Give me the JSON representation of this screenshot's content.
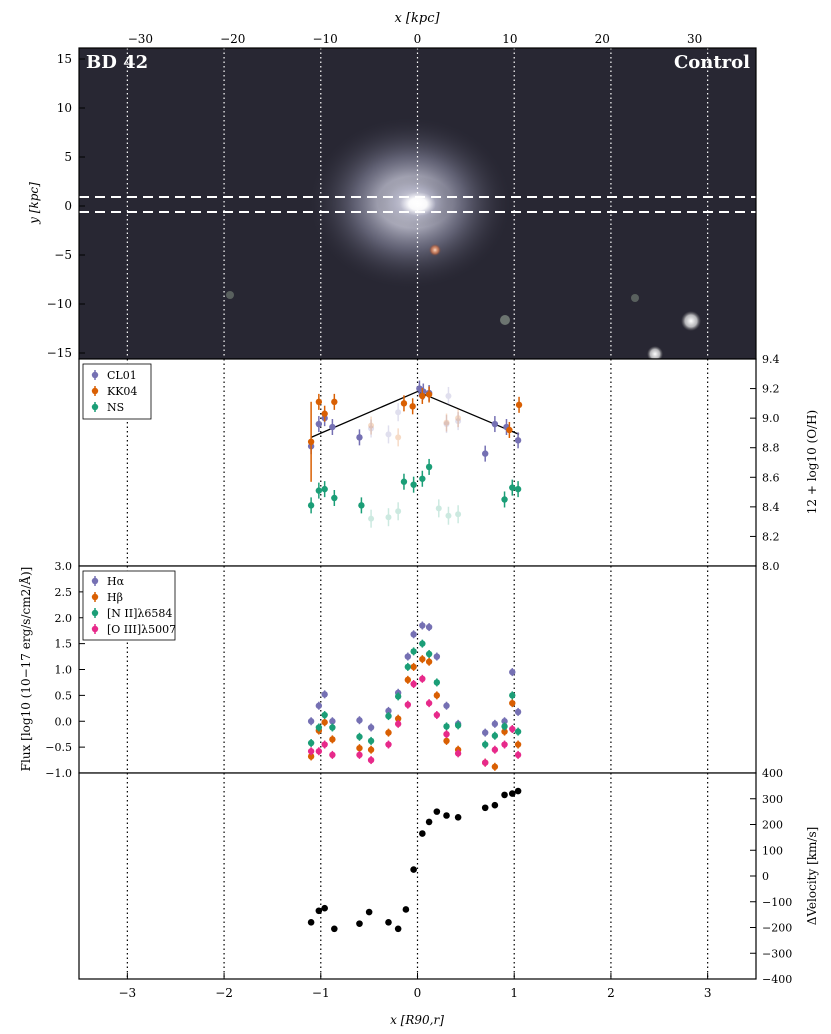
{
  "chart_data": [
    {
      "type": "image",
      "panel": "galaxy-image",
      "label_left": "BD 42",
      "label_right": "Control",
      "xlabel_top": "x [kpc]",
      "ylabel": "y [kpc]",
      "xticks_kpc": [
        "−30",
        "−20",
        "−10",
        "0",
        "10",
        "20",
        "30"
      ],
      "yticks": [
        "15",
        "10",
        "5",
        "0",
        "−5",
        "−10",
        "−15"
      ]
    },
    {
      "type": "scatter",
      "panel": "metallicity",
      "ylabel": "12 + log10 (O/H)",
      "ylim": [
        8.0,
        9.4
      ],
      "yticks": [
        "9.4",
        "9.2",
        "9.0",
        "8.8",
        "8.6",
        "8.4",
        "8.2",
        "8.0"
      ],
      "legend": [
        "CL01",
        "KK04",
        "NS"
      ],
      "colors": {
        "CL01": "#7570b3",
        "KK04": "#d95f02",
        "NS": "#1b9e77"
      },
      "series": [
        {
          "name": "CL01",
          "points": [
            [
              -1.1,
              8.81
            ],
            [
              -1.02,
              8.96
            ],
            [
              -0.96,
              9.0
            ],
            [
              -0.88,
              8.94
            ],
            [
              -0.6,
              8.87
            ],
            [
              0.02,
              9.2
            ],
            [
              0.06,
              9.18
            ],
            [
              0.12,
              9.17
            ],
            [
              0.7,
              8.76
            ],
            [
              0.8,
              8.96
            ],
            [
              0.92,
              8.94
            ],
            [
              1.04,
              8.85
            ]
          ]
        },
        {
          "name": "KK04",
          "points": [
            [
              -1.1,
              8.84
            ],
            [
              -1.02,
              9.11
            ],
            [
              -0.96,
              9.03
            ],
            [
              -0.86,
              9.11
            ],
            [
              -0.14,
              9.1
            ],
            [
              -0.05,
              9.08
            ],
            [
              0.05,
              9.15
            ],
            [
              0.12,
              9.16
            ],
            [
              0.95,
              8.92
            ],
            [
              1.05,
              9.09
            ]
          ]
        },
        {
          "name": "NS",
          "points": [
            [
              -1.1,
              8.41
            ],
            [
              -1.02,
              8.51
            ],
            [
              -0.96,
              8.52
            ],
            [
              -0.86,
              8.46
            ],
            [
              -0.58,
              8.41
            ],
            [
              -0.14,
              8.57
            ],
            [
              -0.04,
              8.55
            ],
            [
              0.05,
              8.59
            ],
            [
              0.12,
              8.67
            ],
            [
              0.9,
              8.45
            ],
            [
              0.98,
              8.53
            ],
            [
              1.04,
              8.52
            ]
          ]
        }
      ],
      "faded_series": [
        {
          "name": "CL01",
          "points": [
            [
              -0.48,
              8.93
            ],
            [
              -0.3,
              8.89
            ],
            [
              -0.2,
              9.04
            ],
            [
              0.3,
              8.96
            ],
            [
              0.32,
              9.15
            ],
            [
              0.42,
              8.98
            ]
          ]
        },
        {
          "name": "KK04",
          "points": [
            [
              -0.48,
              8.95
            ],
            [
              -0.2,
              8.87
            ],
            [
              0.3,
              8.97
            ],
            [
              0.42,
              9.0
            ]
          ]
        },
        {
          "name": "NS",
          "points": [
            [
              -0.48,
              8.32
            ],
            [
              -0.3,
              8.33
            ],
            [
              -0.2,
              8.37
            ],
            [
              0.22,
              8.39
            ],
            [
              0.32,
              8.34
            ],
            [
              0.42,
              8.35
            ]
          ]
        }
      ],
      "fit_line": [
        [
          -1.1,
          8.87
        ],
        [
          0.0,
          9.18
        ],
        [
          1.05,
          8.89
        ]
      ]
    },
    {
      "type": "scatter",
      "panel": "flux",
      "ylabel": "Flux [log10 (10−17 erg/s/cm2/Å)]",
      "ylim": [
        -1.0,
        3.0
      ],
      "yticks": [
        "3.0",
        "2.5",
        "2.0",
        "1.5",
        "1.0",
        "0.5",
        "0.0",
        "−0.5",
        "−1.0"
      ],
      "legend": [
        "Hα",
        "Hβ",
        "[N II]λ6584",
        "[O III]λ5007"
      ],
      "colors": {
        "Hα": "#7570b3",
        "Hβ": "#d95f02",
        "[N II]λ6584": "#1b9e77",
        "[O III]λ5007": "#e7298a"
      },
      "series": [
        {
          "name": "Hα",
          "points": [
            [
              -1.1,
              0.0
            ],
            [
              -1.02,
              0.3
            ],
            [
              -0.96,
              0.52
            ],
            [
              -0.88,
              0.0
            ],
            [
              -0.6,
              0.02
            ],
            [
              -0.48,
              -0.12
            ],
            [
              -0.3,
              0.2
            ],
            [
              -0.2,
              0.55
            ],
            [
              -0.1,
              1.25
            ],
            [
              -0.04,
              1.68
            ],
            [
              0.05,
              1.85
            ],
            [
              0.12,
              1.82
            ],
            [
              0.2,
              1.25
            ],
            [
              0.3,
              0.3
            ],
            [
              0.42,
              -0.05
            ],
            [
              0.7,
              -0.22
            ],
            [
              0.8,
              -0.05
            ],
            [
              0.9,
              0.0
            ],
            [
              0.98,
              0.95
            ],
            [
              1.04,
              0.18
            ]
          ]
        },
        {
          "name": "Hβ",
          "points": [
            [
              -1.1,
              -0.68
            ],
            [
              -1.02,
              -0.18
            ],
            [
              -0.96,
              -0.02
            ],
            [
              -0.88,
              -0.35
            ],
            [
              -0.6,
              -0.52
            ],
            [
              -0.48,
              -0.55
            ],
            [
              -0.3,
              -0.22
            ],
            [
              -0.2,
              0.05
            ],
            [
              -0.1,
              0.8
            ],
            [
              -0.04,
              1.05
            ],
            [
              0.05,
              1.2
            ],
            [
              0.12,
              1.15
            ],
            [
              0.2,
              0.5
            ],
            [
              0.3,
              -0.38
            ],
            [
              0.42,
              -0.55
            ],
            [
              0.7,
              -0.8
            ],
            [
              0.8,
              -0.88
            ],
            [
              0.9,
              -0.2
            ],
            [
              0.98,
              0.35
            ],
            [
              1.04,
              -0.45
            ]
          ]
        },
        {
          "name": "[N II]λ6584",
          "points": [
            [
              -1.1,
              -0.42
            ],
            [
              -1.02,
              -0.12
            ],
            [
              -0.96,
              0.12
            ],
            [
              -0.88,
              -0.12
            ],
            [
              -0.6,
              -0.3
            ],
            [
              -0.48,
              -0.38
            ],
            [
              -0.3,
              0.1
            ],
            [
              -0.2,
              0.48
            ],
            [
              -0.1,
              1.05
            ],
            [
              -0.04,
              1.35
            ],
            [
              0.05,
              1.5
            ],
            [
              0.12,
              1.3
            ],
            [
              0.2,
              0.75
            ],
            [
              0.3,
              -0.1
            ],
            [
              0.42,
              -0.08
            ],
            [
              0.7,
              -0.45
            ],
            [
              0.8,
              -0.28
            ],
            [
              0.9,
              -0.1
            ],
            [
              0.98,
              0.5
            ],
            [
              1.04,
              -0.2
            ]
          ]
        },
        {
          "name": "[O III]λ5007",
          "points": [
            [
              -1.1,
              -0.58
            ],
            [
              -1.02,
              -0.58
            ],
            [
              -0.96,
              -0.45
            ],
            [
              -0.88,
              -0.65
            ],
            [
              -0.6,
              -0.65
            ],
            [
              -0.48,
              -0.75
            ],
            [
              -0.3,
              -0.45
            ],
            [
              -0.2,
              -0.05
            ],
            [
              -0.1,
              0.32
            ],
            [
              -0.04,
              0.72
            ],
            [
              0.05,
              0.82
            ],
            [
              0.12,
              0.35
            ],
            [
              0.2,
              0.12
            ],
            [
              0.3,
              -0.25
            ],
            [
              0.42,
              -0.62
            ],
            [
              0.7,
              -0.8
            ],
            [
              0.8,
              -0.55
            ],
            [
              0.9,
              -0.45
            ],
            [
              0.98,
              -0.15
            ],
            [
              1.04,
              -0.65
            ]
          ]
        }
      ]
    },
    {
      "type": "scatter",
      "panel": "velocity",
      "ylabel": "ΔVelocity [km/s]",
      "xlabel": "x [R90,r]",
      "ylim": [
        -400,
        400
      ],
      "yticks": [
        "400",
        "300",
        "200",
        "100",
        "0",
        "−100",
        "−200",
        "−300",
        "−400"
      ],
      "xlim": [
        -3.5,
        3.5
      ],
      "xticks": [
        "−3",
        "−2",
        "−1",
        "0",
        "1",
        "2",
        "3"
      ],
      "color": "#000000",
      "points": [
        [
          -1.1,
          -180
        ],
        [
          -1.02,
          -135
        ],
        [
          -0.96,
          -125
        ],
        [
          -0.86,
          -205
        ],
        [
          -0.6,
          -185
        ],
        [
          -0.5,
          -140
        ],
        [
          -0.3,
          -180
        ],
        [
          -0.2,
          -205
        ],
        [
          -0.12,
          -130
        ],
        [
          -0.04,
          25
        ],
        [
          0.05,
          165
        ],
        [
          0.12,
          210
        ],
        [
          0.2,
          250
        ],
        [
          0.3,
          235
        ],
        [
          0.42,
          228
        ],
        [
          0.7,
          265
        ],
        [
          0.8,
          275
        ],
        [
          0.9,
          315
        ],
        [
          0.98,
          320
        ],
        [
          1.04,
          330
        ]
      ]
    }
  ]
}
